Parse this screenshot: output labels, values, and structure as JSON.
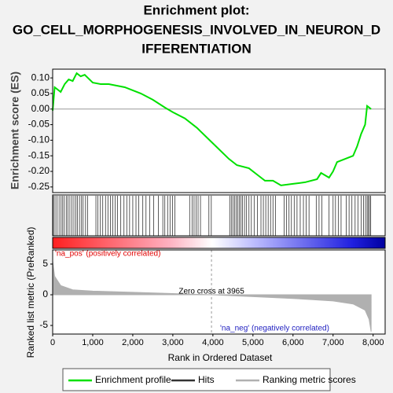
{
  "chart_data": [
    {
      "type": "line",
      "title": [
        "Enrichment plot:",
        "GO_CELL_MORPHOGENESIS_INVOLVED_IN_NEURON_D",
        "IFFERENTIATION"
      ],
      "ylabel": "Enrichment score (ES)",
      "xlim": [
        0,
        8300
      ],
      "ylim": [
        -0.268,
        0.128
      ],
      "yticks": [
        {
          "value": 0.1,
          "label": "0.10"
        },
        {
          "value": 0.05,
          "label": "0.05"
        },
        {
          "value": 0,
          "label": "0.00"
        },
        {
          "value": -0.05,
          "label": "-0.05"
        },
        {
          "value": -0.1,
          "label": "-0.10"
        },
        -0.15,
        {
          "value": -0.2,
          "label": "-0.20"
        },
        -0.25
      ],
      "series": [
        {
          "name": "Enrichment profile",
          "color": "#00e000",
          "x": [
            0,
            50,
            200,
            300,
            400,
            500,
            600,
            700,
            800,
            1000,
            1200,
            1400,
            1600,
            1800,
            2000,
            2200,
            2500,
            2800,
            3000,
            3300,
            3600,
            4000,
            4400,
            4600,
            4900,
            5100,
            5300,
            5500,
            5700,
            6000,
            6300,
            6600,
            6700,
            6900,
            7000,
            7100,
            7300,
            7500,
            7600,
            7700,
            7800,
            7850,
            7950
          ],
          "values": [
            -0.005,
            0.07,
            0.055,
            0.08,
            0.095,
            0.09,
            0.115,
            0.105,
            0.11,
            0.085,
            0.08,
            0.08,
            0.075,
            0.07,
            0.06,
            0.05,
            0.03,
            0.005,
            -0.01,
            -0.03,
            -0.06,
            -0.11,
            -0.16,
            -0.18,
            -0.19,
            -0.21,
            -0.23,
            -0.23,
            -0.245,
            -0.24,
            -0.235,
            -0.225,
            -0.205,
            -0.22,
            -0.2,
            -0.17,
            -0.16,
            -0.15,
            -0.12,
            -0.08,
            -0.05,
            0.01,
            0.0
          ]
        }
      ],
      "hits": {
        "name": "Hits",
        "color": "#333333",
        "x": [
          20,
          60,
          110,
          160,
          210,
          250,
          290,
          340,
          380,
          430,
          480,
          530,
          580,
          620,
          670,
          720,
          760,
          820,
          870,
          1080,
          1130,
          1190,
          1250,
          1320,
          1380,
          1440,
          1500,
          1560,
          1620,
          1700,
          1780,
          1850,
          1920,
          2000,
          2080,
          2150,
          2250,
          2330,
          2420,
          2520,
          2640,
          2750,
          2800,
          2870,
          2930,
          2990,
          3050,
          3420,
          3480,
          3530,
          3580,
          3630,
          3690,
          3900,
          3960,
          4420,
          4460,
          4500,
          4540,
          4580,
          4620,
          4660,
          4700,
          4740,
          4790,
          4840,
          4900,
          4960,
          5030,
          5110,
          5200,
          5260,
          5320,
          5380,
          5440,
          5500,
          5560,
          5780,
          5840,
          5900,
          5960,
          6030,
          6100,
          6180,
          6260,
          6330,
          6400,
          6580,
          6650,
          6720,
          6900,
          7000,
          7060,
          7130,
          7200,
          7330,
          7400,
          7470,
          7550,
          7620,
          7700,
          7760,
          7810,
          7850,
          7880,
          7910,
          7940
        ]
      }
    },
    {
      "type": "area",
      "ylabel": "Ranked list metric (PreRanked)",
      "xlabel": "Rank in Ordered Dataset",
      "xlim": [
        0,
        8300
      ],
      "xticks": [
        0,
        {
          "value": 1000,
          "label": "1,000"
        },
        {
          "value": 2000,
          "label": "2,000"
        },
        {
          "value": 3000,
          "label": "3,000"
        },
        {
          "value": 4000,
          "label": "4,000"
        },
        {
          "value": 5000,
          "label": "5,000"
        },
        {
          "value": 6000,
          "label": "6,000"
        },
        {
          "value": 7000,
          "label": "7,000"
        },
        {
          "value": 8000,
          "label": "8,000"
        }
      ],
      "ylim": [
        -6.4,
        7.3
      ],
      "yticks": [
        5,
        0,
        -5
      ],
      "series": [
        {
          "name": "Ranking metric scores",
          "color": "#b0b0b0",
          "x": [
            0,
            50,
            200,
            500,
            1000,
            2000,
            3000,
            3965,
            5000,
            6000,
            7000,
            7500,
            7800,
            7900,
            7950
          ],
          "values": [
            5.5,
            3,
            1.5,
            0.8,
            0.6,
            0.4,
            0.2,
            0,
            -0.3,
            -0.6,
            -1.0,
            -1.5,
            -2.5,
            -4,
            -6
          ]
        }
      ],
      "zero_cross": {
        "value": 3965,
        "label": "Zero cross at 3965"
      },
      "annotations": [
        {
          "text": "'na_pos' (positively correlated)",
          "color": "#e00000"
        },
        {
          "text": "'na_neg' (negatively correlated)",
          "color": "#2020c0"
        }
      ]
    }
  ]
}
